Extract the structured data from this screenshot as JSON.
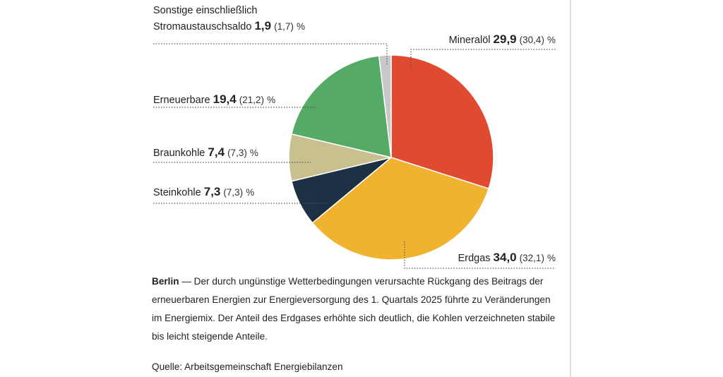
{
  "chart_data": {
    "type": "pie",
    "categories": [
      "Mineralöl",
      "Erdgas",
      "Steinkohle",
      "Braunkohle",
      "Erneuerbare",
      "Sonstige einschließlich\nStromaustauschsaldo"
    ],
    "values": [
      29.9,
      34.0,
      7.3,
      7.4,
      19.4,
      1.9
    ],
    "value_labels": [
      "29,9",
      "34,0",
      "7,3",
      "7,4",
      "19,4",
      "1,9"
    ],
    "previous_values": [
      30.4,
      32.1,
      7.3,
      7.3,
      21.2,
      1.7
    ],
    "previous_value_labels": [
      "(30,4)",
      "(32,1)",
      "(7,3)",
      "(7,3)",
      "(21,2)",
      "(1,7)"
    ],
    "unit": "%",
    "colors": [
      "#e04a30",
      "#f0b330",
      "#1e3044",
      "#c8c08e",
      "#55aa66",
      "#c8c8c8"
    ]
  },
  "text": {
    "lead": "Berlin",
    "body": "— Der durch ungünstige Wetterbedingungen verursachte Rückgang des Beitrags der erneuerbaren Energien zur Energieversorgung des 1. Quartals 2025 führte zu Veränderungen im Energiemix. Der Anteil des Erdgases erhöhte sich deutlich, die Kohlen verzeichneten stabile bis leicht steigende Anteile.",
    "source": "Quelle: Arbeitsgemeinschaft Energiebilanzen"
  }
}
